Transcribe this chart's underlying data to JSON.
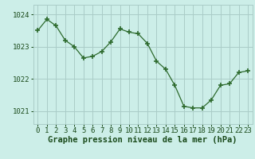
{
  "x": [
    0,
    1,
    2,
    3,
    4,
    5,
    6,
    7,
    8,
    9,
    10,
    11,
    12,
    13,
    14,
    15,
    16,
    17,
    18,
    19,
    20,
    21,
    22,
    23
  ],
  "y": [
    1023.5,
    1023.85,
    1023.65,
    1023.2,
    1023.0,
    1022.65,
    1022.7,
    1022.85,
    1023.15,
    1023.55,
    1023.45,
    1023.4,
    1023.1,
    1022.55,
    1022.3,
    1021.8,
    1021.15,
    1021.1,
    1021.1,
    1021.35,
    1021.8,
    1021.85,
    1022.2,
    1022.25
  ],
  "ylim": [
    1020.6,
    1024.3
  ],
  "yticks": [
    1021,
    1022,
    1023,
    1024
  ],
  "xticks": [
    0,
    1,
    2,
    3,
    4,
    5,
    6,
    7,
    8,
    9,
    10,
    11,
    12,
    13,
    14,
    15,
    16,
    17,
    18,
    19,
    20,
    21,
    22,
    23
  ],
  "line_color": "#2d6a2d",
  "marker_color": "#2d6a2d",
  "bg_color": "#cceee8",
  "grid_color": "#aaccc8",
  "xlabel": "Graphe pression niveau de la mer (hPa)",
  "xlabel_color": "#1a4a1a",
  "tick_color": "#1a4a1a",
  "axis_label_fontsize": 7.5,
  "tick_fontsize": 6.5
}
